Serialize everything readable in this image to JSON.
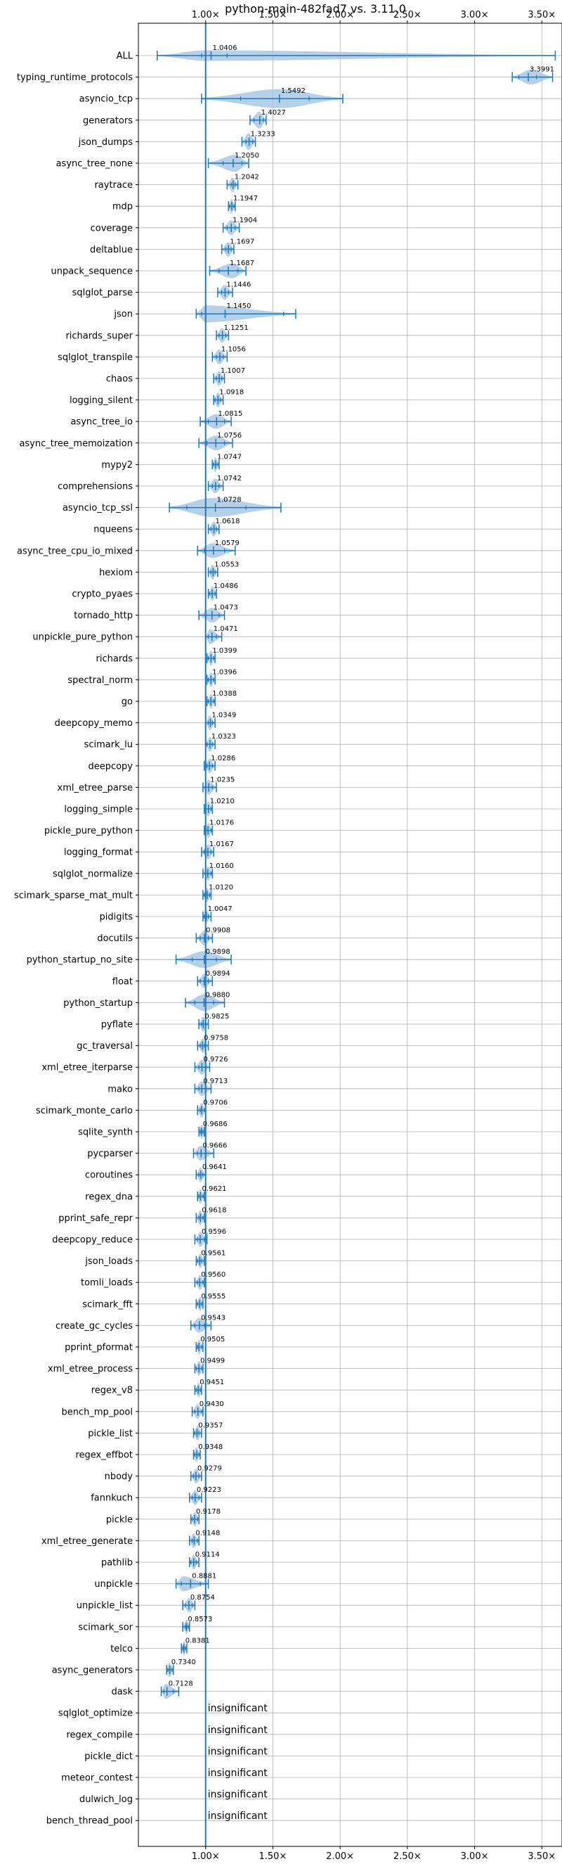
{
  "chart_data": {
    "type": "violin",
    "title": "python-main-482fad7 vs. 3.11.0",
    "xlabel": "",
    "ylabel": "",
    "xlim": [
      0.5,
      3.65
    ],
    "xticks": [
      1.0,
      1.5,
      2.0,
      2.5,
      3.0,
      3.5
    ],
    "xtick_labels": [
      "1.00×",
      "1.50×",
      "2.00×",
      "2.50×",
      "3.00×",
      "3.50×"
    ],
    "tick_positions": [
      "top",
      "bottom"
    ],
    "grid": true,
    "reference_line": 1.0,
    "colors": {
      "violin": "#a9c8e6",
      "line": "#1f77b4",
      "grid": "#b0b0b0"
    },
    "insignificant_text": "insignificant",
    "benchmarks": [
      {
        "name": "ALL",
        "value": 1.0406,
        "label": "1.0406",
        "min": 0.64,
        "max": 3.6,
        "q1": 0.97,
        "q3": 1.16,
        "width": 0.5,
        "center": 0.99
      },
      {
        "name": "typing_runtime_protocols",
        "value": 3.3991,
        "label": "3.3991",
        "min": 3.28,
        "max": 3.58,
        "q1": 3.33,
        "q3": 3.46,
        "width": 0.7,
        "center": 3.42
      },
      {
        "name": "asyncio_tcp",
        "value": 1.5492,
        "label": "1.5492",
        "min": 0.97,
        "max": 2.02,
        "q1": 1.26,
        "q3": 1.77,
        "width": 0.9,
        "center": 1.55
      },
      {
        "name": "generators",
        "value": 1.4027,
        "label": "1.4027",
        "min": 1.33,
        "max": 1.45,
        "q1": 1.36,
        "q3": 1.43,
        "width": 0.8,
        "center": 1.4
      },
      {
        "name": "json_dumps",
        "value": 1.3233,
        "label": "1.3233",
        "min": 1.27,
        "max": 1.37,
        "q1": 1.3,
        "q3": 1.35,
        "width": 0.8,
        "center": 1.32
      },
      {
        "name": "async_tree_none",
        "value": 1.205,
        "label": "1.2050",
        "min": 1.02,
        "max": 1.32,
        "q1": 1.13,
        "q3": 1.27,
        "width": 0.8,
        "center": 1.22
      },
      {
        "name": "raytrace",
        "value": 1.2042,
        "label": "1.2042",
        "min": 1.16,
        "max": 1.24,
        "q1": 1.19,
        "q3": 1.22,
        "width": 0.7,
        "center": 1.2
      },
      {
        "name": "mdp",
        "value": 1.1947,
        "label": "1.1947",
        "min": 1.17,
        "max": 1.22,
        "q1": 1.18,
        "q3": 1.21,
        "width": 0.7,
        "center": 1.19
      },
      {
        "name": "coverage",
        "value": 1.1904,
        "label": "1.1904",
        "min": 1.13,
        "max": 1.25,
        "q1": 1.16,
        "q3": 1.22,
        "width": 0.7,
        "center": 1.19
      },
      {
        "name": "deltablue",
        "value": 1.1697,
        "label": "1.1697",
        "min": 1.12,
        "max": 1.21,
        "q1": 1.15,
        "q3": 1.19,
        "width": 0.7,
        "center": 1.17
      },
      {
        "name": "unpack_sequence",
        "value": 1.1687,
        "label": "1.1687",
        "min": 1.03,
        "max": 1.3,
        "q1": 1.1,
        "q3": 1.24,
        "width": 0.7,
        "center": 1.2
      },
      {
        "name": "sqlglot_parse",
        "value": 1.1446,
        "label": "1.1446",
        "min": 1.09,
        "max": 1.2,
        "q1": 1.12,
        "q3": 1.17,
        "width": 0.7,
        "center": 1.14
      },
      {
        "name": "json",
        "value": 1.145,
        "label": "1.1450",
        "min": 0.93,
        "max": 1.67,
        "q1": 0.97,
        "q3": 1.58,
        "width": 0.8,
        "center": 1.0
      },
      {
        "name": "richards_super",
        "value": 1.1251,
        "label": "1.1251",
        "min": 1.08,
        "max": 1.17,
        "q1": 1.1,
        "q3": 1.15,
        "width": 0.7,
        "center": 1.12
      },
      {
        "name": "sqlglot_transpile",
        "value": 1.1056,
        "label": "1.1056",
        "min": 1.05,
        "max": 1.16,
        "q1": 1.08,
        "q3": 1.13,
        "width": 0.7,
        "center": 1.1
      },
      {
        "name": "chaos",
        "value": 1.1007,
        "label": "1.1007",
        "min": 1.06,
        "max": 1.14,
        "q1": 1.08,
        "q3": 1.12,
        "width": 0.7,
        "center": 1.1
      },
      {
        "name": "logging_silent",
        "value": 1.0918,
        "label": "1.0918",
        "min": 1.06,
        "max": 1.13,
        "q1": 1.07,
        "q3": 1.11,
        "width": 0.7,
        "center": 1.09
      },
      {
        "name": "async_tree_io",
        "value": 1.0815,
        "label": "1.0815",
        "min": 0.96,
        "max": 1.19,
        "q1": 1.02,
        "q3": 1.14,
        "width": 0.7,
        "center": 1.08
      },
      {
        "name": "async_tree_memoization",
        "value": 1.0756,
        "label": "1.0756",
        "min": 0.95,
        "max": 1.2,
        "q1": 1.01,
        "q3": 1.14,
        "width": 0.7,
        "center": 1.08
      },
      {
        "name": "mypy2",
        "value": 1.0747,
        "label": "1.0747",
        "min": 1.05,
        "max": 1.1,
        "q1": 1.06,
        "q3": 1.09,
        "width": 0.7,
        "center": 1.07
      },
      {
        "name": "comprehensions",
        "value": 1.0742,
        "label": "1.0742",
        "min": 1.02,
        "max": 1.13,
        "q1": 1.05,
        "q3": 1.1,
        "width": 0.7,
        "center": 1.07
      },
      {
        "name": "asyncio_tcp_ssl",
        "value": 1.0728,
        "label": "1.0728",
        "min": 0.73,
        "max": 1.56,
        "q1": 0.86,
        "q3": 1.3,
        "width": 0.9,
        "center": 1.05
      },
      {
        "name": "nqueens",
        "value": 1.0618,
        "label": "1.0618",
        "min": 1.02,
        "max": 1.1,
        "q1": 1.04,
        "q3": 1.08,
        "width": 0.7,
        "center": 1.06
      },
      {
        "name": "async_tree_cpu_io_mixed",
        "value": 1.0579,
        "label": "1.0579",
        "min": 0.94,
        "max": 1.22,
        "q1": 0.99,
        "q3": 1.14,
        "width": 0.7,
        "center": 1.05
      },
      {
        "name": "hexiom",
        "value": 1.0553,
        "label": "1.0553",
        "min": 1.02,
        "max": 1.09,
        "q1": 1.04,
        "q3": 1.07,
        "width": 0.7,
        "center": 1.05
      },
      {
        "name": "crypto_pyaes",
        "value": 1.0486,
        "label": "1.0486",
        "min": 1.02,
        "max": 1.08,
        "q1": 1.03,
        "q3": 1.07,
        "width": 0.7,
        "center": 1.05
      },
      {
        "name": "tornado_http",
        "value": 1.0473,
        "label": "1.0473",
        "min": 0.95,
        "max": 1.14,
        "q1": 1.0,
        "q3": 1.1,
        "width": 0.7,
        "center": 1.05
      },
      {
        "name": "unpickle_pure_python",
        "value": 1.0471,
        "label": "1.0471",
        "min": 1.0,
        "max": 1.12,
        "q1": 1.02,
        "q3": 1.08,
        "width": 0.7,
        "center": 1.03
      },
      {
        "name": "richards",
        "value": 1.0399,
        "label": "1.0399",
        "min": 1.01,
        "max": 1.07,
        "q1": 1.02,
        "q3": 1.06,
        "width": 0.7,
        "center": 1.04
      },
      {
        "name": "spectral_norm",
        "value": 1.0396,
        "label": "1.0396",
        "min": 1.01,
        "max": 1.07,
        "q1": 1.02,
        "q3": 1.06,
        "width": 0.7,
        "center": 1.04
      },
      {
        "name": "go",
        "value": 1.0388,
        "label": "1.0388",
        "min": 1.01,
        "max": 1.07,
        "q1": 1.02,
        "q3": 1.06,
        "width": 0.7,
        "center": 1.04
      },
      {
        "name": "deepcopy_memo",
        "value": 1.0349,
        "label": "1.0349",
        "min": 1.0,
        "max": 1.07,
        "q1": 1.02,
        "q3": 1.05,
        "width": 0.7,
        "center": 1.03
      },
      {
        "name": "scimark_lu",
        "value": 1.0323,
        "label": "1.0323",
        "min": 1.0,
        "max": 1.07,
        "q1": 1.01,
        "q3": 1.05,
        "width": 0.7,
        "center": 1.03
      },
      {
        "name": "deepcopy",
        "value": 1.0286,
        "label": "1.0286",
        "min": 0.99,
        "max": 1.07,
        "q1": 1.01,
        "q3": 1.05,
        "width": 0.7,
        "center": 1.03
      },
      {
        "name": "xml_etree_parse",
        "value": 1.0235,
        "label": "1.0235",
        "min": 0.98,
        "max": 1.08,
        "q1": 1.0,
        "q3": 1.05,
        "width": 0.7,
        "center": 1.02
      },
      {
        "name": "logging_simple",
        "value": 1.021,
        "label": "1.0210",
        "min": 0.99,
        "max": 1.05,
        "q1": 1.0,
        "q3": 1.04,
        "width": 0.7,
        "center": 1.02
      },
      {
        "name": "pickle_pure_python",
        "value": 1.0176,
        "label": "1.0176",
        "min": 0.99,
        "max": 1.05,
        "q1": 1.0,
        "q3": 1.04,
        "width": 0.7,
        "center": 1.02
      },
      {
        "name": "logging_format",
        "value": 1.0167,
        "label": "1.0167",
        "min": 0.97,
        "max": 1.06,
        "q1": 0.99,
        "q3": 1.04,
        "width": 0.7,
        "center": 1.02
      },
      {
        "name": "sqlglot_normalize",
        "value": 1.016,
        "label": "1.0160",
        "min": 0.98,
        "max": 1.05,
        "q1": 1.0,
        "q3": 1.04,
        "width": 0.7,
        "center": 1.02
      },
      {
        "name": "scimark_sparse_mat_mult",
        "value": 1.012,
        "label": "1.0120",
        "min": 0.98,
        "max": 1.04,
        "q1": 0.99,
        "q3": 1.03,
        "width": 0.7,
        "center": 1.01
      },
      {
        "name": "pidigits",
        "value": 1.0047,
        "label": "1.0047",
        "min": 0.98,
        "max": 1.04,
        "q1": 0.99,
        "q3": 1.02,
        "width": 0.7,
        "center": 1.0
      },
      {
        "name": "docutils",
        "value": 0.9908,
        "label": "0.9908",
        "min": 0.93,
        "max": 1.05,
        "q1": 0.96,
        "q3": 1.02,
        "width": 0.7,
        "center": 0.99
      },
      {
        "name": "python_startup_no_site",
        "value": 0.9898,
        "label": "0.9898",
        "min": 0.78,
        "max": 1.19,
        "q1": 0.9,
        "q3": 1.08,
        "width": 0.8,
        "center": 0.99
      },
      {
        "name": "float",
        "value": 0.9894,
        "label": "0.9894",
        "min": 0.94,
        "max": 1.05,
        "q1": 0.96,
        "q3": 1.02,
        "width": 0.7,
        "center": 0.99
      },
      {
        "name": "python_startup",
        "value": 0.988,
        "label": "0.9880",
        "min": 0.85,
        "max": 1.14,
        "q1": 0.92,
        "q3": 1.06,
        "width": 0.8,
        "center": 0.99
      },
      {
        "name": "pyflate",
        "value": 0.9825,
        "label": "0.9825",
        "min": 0.95,
        "max": 1.02,
        "q1": 0.97,
        "q3": 1.0,
        "width": 0.7,
        "center": 0.98
      },
      {
        "name": "gc_traversal",
        "value": 0.9758,
        "label": "0.9758",
        "min": 0.94,
        "max": 1.02,
        "q1": 0.96,
        "q3": 0.99,
        "width": 0.7,
        "center": 0.98
      },
      {
        "name": "xml_etree_iterparse",
        "value": 0.9726,
        "label": "0.9726",
        "min": 0.92,
        "max": 1.03,
        "q1": 0.95,
        "q3": 1.0,
        "width": 0.7,
        "center": 0.97
      },
      {
        "name": "mako",
        "value": 0.9713,
        "label": "0.9713",
        "min": 0.92,
        "max": 1.04,
        "q1": 0.95,
        "q3": 1.0,
        "width": 0.7,
        "center": 0.97
      },
      {
        "name": "scimark_monte_carlo",
        "value": 0.9706,
        "label": "0.9706",
        "min": 0.94,
        "max": 1.0,
        "q1": 0.96,
        "q3": 0.99,
        "width": 0.7,
        "center": 0.97
      },
      {
        "name": "sqlite_synth",
        "value": 0.9686,
        "label": "0.9686",
        "min": 0.95,
        "max": 0.99,
        "q1": 0.96,
        "q3": 0.98,
        "width": 0.7,
        "center": 0.97
      },
      {
        "name": "pycparser",
        "value": 0.9666,
        "label": "0.9666",
        "min": 0.91,
        "max": 1.06,
        "q1": 0.94,
        "q3": 1.0,
        "width": 0.7,
        "center": 0.96
      },
      {
        "name": "coroutines",
        "value": 0.9641,
        "label": "0.9641",
        "min": 0.93,
        "max": 1.0,
        "q1": 0.95,
        "q3": 0.98,
        "width": 0.7,
        "center": 0.96
      },
      {
        "name": "regex_dna",
        "value": 0.9621,
        "label": "0.9621",
        "min": 0.94,
        "max": 0.99,
        "q1": 0.95,
        "q3": 0.98,
        "width": 0.7,
        "center": 0.96
      },
      {
        "name": "pprint_safe_repr",
        "value": 0.9618,
        "label": "0.9618",
        "min": 0.93,
        "max": 0.99,
        "q1": 0.95,
        "q3": 0.98,
        "width": 0.7,
        "center": 0.96
      },
      {
        "name": "deepcopy_reduce",
        "value": 0.9596,
        "label": "0.9596",
        "min": 0.92,
        "max": 1.01,
        "q1": 0.94,
        "q3": 0.99,
        "width": 0.7,
        "center": 0.96
      },
      {
        "name": "json_loads",
        "value": 0.9561,
        "label": "0.9561",
        "min": 0.93,
        "max": 0.99,
        "q1": 0.94,
        "q3": 0.97,
        "width": 0.7,
        "center": 0.96
      },
      {
        "name": "tomli_loads",
        "value": 0.956,
        "label": "0.9560",
        "min": 0.92,
        "max": 0.99,
        "q1": 0.94,
        "q3": 0.98,
        "width": 0.7,
        "center": 0.96
      },
      {
        "name": "scimark_fft",
        "value": 0.9555,
        "label": "0.9555",
        "min": 0.93,
        "max": 0.98,
        "q1": 0.94,
        "q3": 0.97,
        "width": 0.7,
        "center": 0.96
      },
      {
        "name": "create_gc_cycles",
        "value": 0.9543,
        "label": "0.9543",
        "min": 0.89,
        "max": 1.04,
        "q1": 0.92,
        "q3": 0.99,
        "width": 0.7,
        "center": 0.95
      },
      {
        "name": "pprint_pformat",
        "value": 0.9505,
        "label": "0.9505",
        "min": 0.93,
        "max": 0.98,
        "q1": 0.94,
        "q3": 0.97,
        "width": 0.7,
        "center": 0.95
      },
      {
        "name": "xml_etree_process",
        "value": 0.9499,
        "label": "0.9499",
        "min": 0.92,
        "max": 0.98,
        "q1": 0.93,
        "q3": 0.97,
        "width": 0.7,
        "center": 0.95
      },
      {
        "name": "regex_v8",
        "value": 0.9451,
        "label": "0.9451",
        "min": 0.92,
        "max": 0.97,
        "q1": 0.93,
        "q3": 0.96,
        "width": 0.7,
        "center": 0.95
      },
      {
        "name": "bench_mp_pool",
        "value": 0.943,
        "label": "0.9430",
        "min": 0.9,
        "max": 0.98,
        "q1": 0.92,
        "q3": 0.97,
        "width": 0.7,
        "center": 0.94
      },
      {
        "name": "pickle_list",
        "value": 0.9357,
        "label": "0.9357",
        "min": 0.91,
        "max": 0.97,
        "q1": 0.92,
        "q3": 0.95,
        "width": 0.7,
        "center": 0.94
      },
      {
        "name": "regex_effbot",
        "value": 0.9348,
        "label": "0.9348",
        "min": 0.91,
        "max": 0.96,
        "q1": 0.92,
        "q3": 0.95,
        "width": 0.7,
        "center": 0.93
      },
      {
        "name": "nbody",
        "value": 0.9279,
        "label": "0.9279",
        "min": 0.89,
        "max": 0.97,
        "q1": 0.91,
        "q3": 0.95,
        "width": 0.7,
        "center": 0.93
      },
      {
        "name": "fannkuch",
        "value": 0.9223,
        "label": "0.9223",
        "min": 0.88,
        "max": 0.97,
        "q1": 0.9,
        "q3": 0.95,
        "width": 0.7,
        "center": 0.92
      },
      {
        "name": "pickle",
        "value": 0.9178,
        "label": "0.9178",
        "min": 0.89,
        "max": 0.95,
        "q1": 0.9,
        "q3": 0.94,
        "width": 0.7,
        "center": 0.92
      },
      {
        "name": "xml_etree_generate",
        "value": 0.9148,
        "label": "0.9148",
        "min": 0.88,
        "max": 0.95,
        "q1": 0.9,
        "q3": 0.94,
        "width": 0.7,
        "center": 0.91
      },
      {
        "name": "pathlib",
        "value": 0.9114,
        "label": "0.9114",
        "min": 0.88,
        "max": 0.95,
        "q1": 0.89,
        "q3": 0.93,
        "width": 0.7,
        "center": 0.91
      },
      {
        "name": "unpickle",
        "value": 0.8881,
        "label": "0.8881",
        "min": 0.78,
        "max": 1.02,
        "q1": 0.82,
        "q3": 0.96,
        "width": 0.7,
        "center": 0.83
      },
      {
        "name": "unpickle_list",
        "value": 0.8754,
        "label": "0.8754",
        "min": 0.83,
        "max": 0.92,
        "q1": 0.85,
        "q3": 0.9,
        "width": 0.7,
        "center": 0.88
      },
      {
        "name": "scimark_sor",
        "value": 0.8573,
        "label": "0.8573",
        "min": 0.83,
        "max": 0.88,
        "q1": 0.85,
        "q3": 0.87,
        "width": 0.7,
        "center": 0.86
      },
      {
        "name": "telco",
        "value": 0.8381,
        "label": "0.8381",
        "min": 0.82,
        "max": 0.86,
        "q1": 0.83,
        "q3": 0.85,
        "width": 0.7,
        "center": 0.84
      },
      {
        "name": "async_generators",
        "value": 0.734,
        "label": "0.7340",
        "min": 0.71,
        "max": 0.76,
        "q1": 0.72,
        "q3": 0.75,
        "width": 0.7,
        "center": 0.73
      },
      {
        "name": "dask",
        "value": 0.7128,
        "label": "0.7128",
        "min": 0.67,
        "max": 0.8,
        "q1": 0.69,
        "q3": 0.76,
        "width": 0.7,
        "center": 0.7
      },
      {
        "name": "sqlglot_optimize",
        "insignificant": true
      },
      {
        "name": "regex_compile",
        "insignificant": true
      },
      {
        "name": "pickle_dict",
        "insignificant": true
      },
      {
        "name": "meteor_contest",
        "insignificant": true
      },
      {
        "name": "dulwich_log",
        "insignificant": true
      },
      {
        "name": "bench_thread_pool",
        "insignificant": true
      }
    ]
  }
}
